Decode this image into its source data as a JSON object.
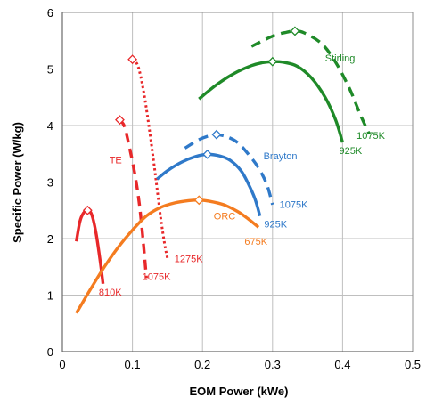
{
  "chart_data": {
    "type": "line",
    "title": "",
    "xlabel": "EOM Power (kWe)",
    "ylabel": "Specific Power (W/kg)",
    "xlim": [
      0,
      0.5
    ],
    "ylim": [
      0,
      6
    ],
    "x_ticks": [
      "0",
      "0.1",
      "0.2",
      "0.3",
      "0.4",
      "0.5"
    ],
    "y_ticks": [
      "0",
      "1",
      "2",
      "3",
      "4",
      "5",
      "6"
    ],
    "grid": true,
    "legend": "none",
    "series": [
      {
        "group": "TE",
        "temp": "810K",
        "color": "#e8282a",
        "dash": "solid",
        "points": [
          [
            0.02,
            1.95
          ],
          [
            0.025,
            2.3
          ],
          [
            0.03,
            2.45
          ],
          [
            0.036,
            2.5
          ],
          [
            0.042,
            2.42
          ],
          [
            0.048,
            2.1
          ],
          [
            0.054,
            1.6
          ],
          [
            0.058,
            1.2
          ]
        ],
        "marker": [
          0.036,
          2.5
        ]
      },
      {
        "group": "TE",
        "temp": "1075K",
        "color": "#e8282a",
        "dash": "dashed",
        "points": [
          [
            0.08,
            4.1
          ],
          [
            0.088,
            4.0
          ],
          [
            0.096,
            3.6
          ],
          [
            0.104,
            3.1
          ],
          [
            0.11,
            2.6
          ],
          [
            0.115,
            2.0
          ],
          [
            0.12,
            1.3
          ]
        ],
        "marker": [
          0.082,
          4.1
        ]
      },
      {
        "group": "TE",
        "temp": "1275K",
        "color": "#e8282a",
        "dash": "dotted",
        "points": [
          [
            0.1,
            5.17
          ],
          [
            0.108,
            5.05
          ],
          [
            0.116,
            4.6
          ],
          [
            0.124,
            3.95
          ],
          [
            0.132,
            3.2
          ],
          [
            0.14,
            2.4
          ],
          [
            0.146,
            1.9
          ],
          [
            0.15,
            1.65
          ]
        ],
        "marker": [
          0.1,
          5.17
        ]
      },
      {
        "group": "ORC",
        "temp": "675K",
        "color": "#f47c20",
        "dash": "solid",
        "points": [
          [
            0.02,
            0.68
          ],
          [
            0.04,
            1.1
          ],
          [
            0.06,
            1.5
          ],
          [
            0.08,
            1.85
          ],
          [
            0.1,
            2.15
          ],
          [
            0.12,
            2.4
          ],
          [
            0.14,
            2.55
          ],
          [
            0.16,
            2.63
          ],
          [
            0.18,
            2.67
          ],
          [
            0.195,
            2.68
          ],
          [
            0.21,
            2.66
          ],
          [
            0.23,
            2.6
          ],
          [
            0.25,
            2.48
          ],
          [
            0.265,
            2.35
          ],
          [
            0.28,
            2.2
          ]
        ],
        "marker": [
          0.195,
          2.68
        ]
      },
      {
        "group": "Brayton",
        "temp": "925K",
        "color": "#2f79c9",
        "dash": "solid",
        "points": [
          [
            0.135,
            3.05
          ],
          [
            0.15,
            3.2
          ],
          [
            0.17,
            3.35
          ],
          [
            0.19,
            3.45
          ],
          [
            0.207,
            3.49
          ],
          [
            0.225,
            3.46
          ],
          [
            0.24,
            3.38
          ],
          [
            0.255,
            3.2
          ],
          [
            0.265,
            2.98
          ],
          [
            0.275,
            2.7
          ],
          [
            0.282,
            2.4
          ]
        ],
        "marker": [
          0.207,
          3.49
        ]
      },
      {
        "group": "Brayton",
        "temp": "1075K",
        "color": "#2f79c9",
        "dash": "dashed",
        "points": [
          [
            0.175,
            3.6
          ],
          [
            0.195,
            3.75
          ],
          [
            0.21,
            3.82
          ],
          [
            0.22,
            3.84
          ],
          [
            0.235,
            3.8
          ],
          [
            0.25,
            3.7
          ],
          [
            0.265,
            3.5
          ],
          [
            0.28,
            3.25
          ],
          [
            0.292,
            2.95
          ],
          [
            0.3,
            2.6
          ]
        ],
        "marker": [
          0.22,
          3.84
        ]
      },
      {
        "group": "Stirling",
        "temp": "925K",
        "color": "#1f8a28",
        "dash": "solid",
        "points": [
          [
            0.195,
            4.47
          ],
          [
            0.22,
            4.72
          ],
          [
            0.245,
            4.92
          ],
          [
            0.27,
            5.06
          ],
          [
            0.285,
            5.11
          ],
          [
            0.3,
            5.13
          ],
          [
            0.315,
            5.12
          ],
          [
            0.335,
            5.05
          ],
          [
            0.355,
            4.85
          ],
          [
            0.375,
            4.5
          ],
          [
            0.39,
            4.1
          ],
          [
            0.4,
            3.7
          ]
        ],
        "marker": [
          0.3,
          5.13
        ]
      },
      {
        "group": "Stirling",
        "temp": "1075K",
        "color": "#1f8a28",
        "dash": "dashed",
        "points": [
          [
            0.27,
            5.4
          ],
          [
            0.3,
            5.58
          ],
          [
            0.32,
            5.65
          ],
          [
            0.332,
            5.67
          ],
          [
            0.345,
            5.64
          ],
          [
            0.37,
            5.45
          ],
          [
            0.39,
            5.12
          ],
          [
            0.41,
            4.65
          ],
          [
            0.425,
            4.2
          ],
          [
            0.438,
            3.85
          ]
        ],
        "marker": [
          0.332,
          5.67
        ]
      }
    ],
    "annotations": [
      {
        "text": "TE",
        "x": 0.076,
        "y": 3.33,
        "color": "#e8282a",
        "anchor": "middle"
      },
      {
        "text": "810K",
        "x": 0.052,
        "y": 0.99,
        "color": "#e8282a",
        "anchor": "start"
      },
      {
        "text": "1075K",
        "x": 0.114,
        "y": 1.27,
        "color": "#e8282a",
        "anchor": "start"
      },
      {
        "text": "1275K",
        "x": 0.16,
        "y": 1.58,
        "color": "#e8282a",
        "anchor": "start"
      },
      {
        "text": "ORC",
        "x": 0.216,
        "y": 2.34,
        "color": "#f47c20",
        "anchor": "start"
      },
      {
        "text": "675K",
        "x": 0.26,
        "y": 1.89,
        "color": "#f47c20",
        "anchor": "start"
      },
      {
        "text": "Brayton",
        "x": 0.287,
        "y": 3.4,
        "color": "#2f79c9",
        "anchor": "start"
      },
      {
        "text": "925K",
        "x": 0.288,
        "y": 2.2,
        "color": "#2f79c9",
        "anchor": "start"
      },
      {
        "text": "1075K",
        "x": 0.31,
        "y": 2.54,
        "color": "#2f79c9",
        "anchor": "start"
      },
      {
        "text": "Stirling",
        "x": 0.375,
        "y": 5.13,
        "color": "#1f8a28",
        "anchor": "start"
      },
      {
        "text": "1075K",
        "x": 0.42,
        "y": 3.76,
        "color": "#1f8a28",
        "anchor": "start"
      },
      {
        "text": "925K",
        "x": 0.395,
        "y": 3.5,
        "color": "#1f8a28",
        "anchor": "start"
      }
    ]
  }
}
